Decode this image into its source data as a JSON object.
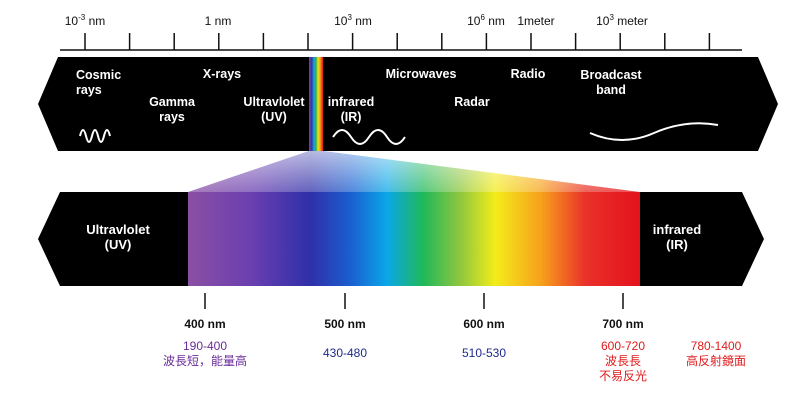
{
  "top_scale": {
    "tick_labels": [
      {
        "base": "10",
        "exp": "-3",
        "unit": " nm"
      },
      {
        "base": "1 nm",
        "exp": "",
        "unit": ""
      },
      {
        "base": "10",
        "exp": "3",
        "unit": " nm"
      },
      {
        "base": "10",
        "exp": "6",
        "unit": " nm"
      },
      {
        "base": "1meter",
        "exp": "",
        "unit": ""
      },
      {
        "base": "10",
        "exp": "3",
        "unit": " meter"
      }
    ]
  },
  "em_band": {
    "cosmic": [
      "Cosmic",
      "rays"
    ],
    "gamma": [
      "Gamma",
      "rays"
    ],
    "xrays": "X-rays",
    "uv": [
      "Ultravlolet",
      "(UV)"
    ],
    "infrared": [
      "infrared",
      "(IR)"
    ],
    "microwaves": "Microwaves",
    "radar": "Radar",
    "radio": "Radio",
    "broadcast": [
      "Broadcast",
      "band"
    ]
  },
  "visible_band": {
    "left": [
      "Ultravlolet",
      "(UV)"
    ],
    "right": [
      "infrared",
      "(IR)"
    ]
  },
  "wavelength_axis": {
    "ticks": [
      "400 nm",
      "500 nm",
      "600 nm",
      "700 nm"
    ]
  },
  "ranges": [
    {
      "lines": [
        "190-400",
        "波長短，能量高"
      ],
      "color": "#6a2b9a"
    },
    {
      "lines": [
        "430-480"
      ],
      "color": "#1f2a8a"
    },
    {
      "lines": [
        "510-530"
      ],
      "color": "#1f2a8a"
    },
    {
      "lines": [
        "600-720",
        "波長長",
        "不易反光"
      ],
      "color": "#e01b1b"
    },
    {
      "lines": [
        "780-1400",
        "高反射鏡面"
      ],
      "color": "#e01b1b"
    }
  ],
  "colors": {
    "band": "#000000",
    "text_on_band": "#ffffff",
    "ink": "#111111"
  }
}
